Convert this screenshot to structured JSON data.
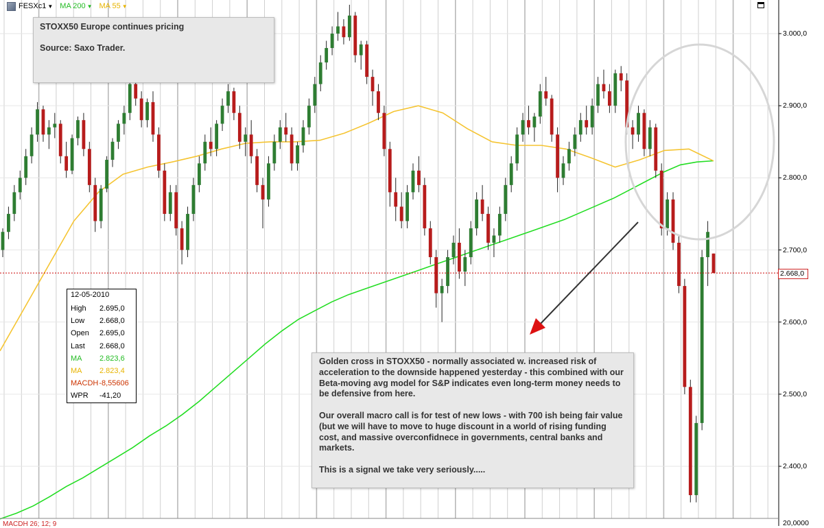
{
  "toolbar": {
    "symbol": "FESXc1",
    "ma_slow_label": "MA 200",
    "ma_fast_label": "MA 55"
  },
  "colors": {
    "up": "#2e7d32",
    "down": "#b71c1c",
    "ma_slow": "#22dd22",
    "ma_fast": "#f5c431",
    "last_line": "#cc0000",
    "grid": "#cfcfcf",
    "arrow": "#333333",
    "arrow_head": "#dd1111"
  },
  "notes": {
    "top_line1": "STOXX50 Europe continues pricing",
    "top_line2": "Source: Saxo Trader.",
    "bottom_p1": "Golden cross in STOXX50 - normally associated w. increased risk of acceleration to the downside happened yesterday - this combined with our Beta-moving avg model for S&P indicates even long-term money needs to be defensive from here.",
    "bottom_p2": "Our overall macro call is for test of new lows - with 700 ish being fair value (but we will have to move to huge discount in a world of rising funding cost, and massive overconfidnece in governments, central banks and markets.",
    "bottom_p3": "This is a signal we take very seriously....."
  },
  "info": {
    "date": "12-05-2010",
    "rows": [
      {
        "label": "High",
        "value": "2.695,0",
        "color": "#000000"
      },
      {
        "label": "Low",
        "value": "2.668,0",
        "color": "#000000"
      },
      {
        "label": "Open",
        "value": "2.695,0",
        "color": "#000000"
      },
      {
        "label": "Last",
        "value": "2.668,0",
        "color": "#000000"
      },
      {
        "label": "MA",
        "value": "2.823,6",
        "color": "#22bb22"
      },
      {
        "label": "MA",
        "value": "2.823,4",
        "color": "#e8b400"
      },
      {
        "label": "MACDH",
        "value": "-8,55606",
        "color": "#cc3300"
      },
      {
        "label": "WPR",
        "value": "-41,20",
        "color": "#000000"
      }
    ]
  },
  "last_price_label": "2.668,0",
  "macd_label": "MACDH 26; 12; 9",
  "macd_axis_label": "20,0000",
  "chart_data": {
    "type": "candlestick",
    "instrument": "FESXc1",
    "y_axis": {
      "ticks": [
        2400,
        2500,
        2600,
        2700,
        2800,
        2900,
        3000
      ],
      "tick_labels": [
        "2.400,0",
        "2.500,0",
        "2.600,0",
        "2.700,0",
        "2.800,0",
        "2.900,0",
        "3.000,0"
      ],
      "range": [
        2320,
        3045
      ]
    },
    "last_price": 2668,
    "series": [
      {
        "name": "MA 200",
        "type": "line",
        "values": [
          2327,
          2335,
          2345,
          2358,
          2372,
          2384,
          2398,
          2412,
          2426,
          2442,
          2456,
          2472,
          2490,
          2510,
          2530,
          2550,
          2570,
          2588,
          2604,
          2616,
          2628,
          2638,
          2646,
          2654,
          2662,
          2670,
          2678,
          2686,
          2694,
          2702,
          2710,
          2718,
          2726,
          2734,
          2742,
          2752,
          2762,
          2772,
          2784,
          2796,
          2808,
          2818,
          2822,
          2823.6
        ]
      },
      {
        "name": "MA 55",
        "type": "line",
        "values": [
          2560,
          2620,
          2680,
          2740,
          2780,
          2805,
          2815,
          2822,
          2830,
          2840,
          2848,
          2850,
          2850,
          2852,
          2862,
          2876,
          2892,
          2900,
          2890,
          2868,
          2850,
          2845,
          2845,
          2840,
          2828,
          2815,
          2825,
          2838,
          2840,
          2823.4
        ]
      }
    ],
    "ohlc": [
      [
        2700,
        2730,
        2690,
        2725
      ],
      [
        2725,
        2760,
        2715,
        2750
      ],
      [
        2750,
        2790,
        2740,
        2780
      ],
      [
        2780,
        2810,
        2770,
        2800
      ],
      [
        2800,
        2840,
        2790,
        2830
      ],
      [
        2830,
        2870,
        2820,
        2860
      ],
      [
        2860,
        2905,
        2850,
        2895
      ],
      [
        2895,
        2900,
        2850,
        2860
      ],
      [
        2860,
        2880,
        2840,
        2870
      ],
      [
        2870,
        2890,
        2855,
        2875
      ],
      [
        2875,
        2880,
        2820,
        2830
      ],
      [
        2830,
        2850,
        2800,
        2810
      ],
      [
        2810,
        2860,
        2805,
        2855
      ],
      [
        2855,
        2885,
        2845,
        2880
      ],
      [
        2880,
        2890,
        2830,
        2840
      ],
      [
        2840,
        2850,
        2780,
        2790
      ],
      [
        2790,
        2800,
        2725,
        2740
      ],
      [
        2740,
        2790,
        2730,
        2785
      ],
      [
        2785,
        2830,
        2780,
        2825
      ],
      [
        2825,
        2855,
        2815,
        2850
      ],
      [
        2850,
        2880,
        2840,
        2875
      ],
      [
        2875,
        2900,
        2860,
        2890
      ],
      [
        2890,
        2940,
        2880,
        2930
      ],
      [
        2930,
        2950,
        2900,
        2910
      ],
      [
        2910,
        2920,
        2870,
        2880
      ],
      [
        2880,
        2910,
        2870,
        2905
      ],
      [
        2905,
        2920,
        2850,
        2860
      ],
      [
        2860,
        2870,
        2800,
        2810
      ],
      [
        2810,
        2820,
        2740,
        2750
      ],
      [
        2750,
        2790,
        2740,
        2780
      ],
      [
        2780,
        2790,
        2720,
        2730
      ],
      [
        2730,
        2740,
        2680,
        2700
      ],
      [
        2700,
        2760,
        2690,
        2750
      ],
      [
        2750,
        2800,
        2740,
        2790
      ],
      [
        2790,
        2830,
        2780,
        2820
      ],
      [
        2820,
        2860,
        2810,
        2850
      ],
      [
        2850,
        2870,
        2830,
        2840
      ],
      [
        2840,
        2880,
        2830,
        2875
      ],
      [
        2875,
        2910,
        2865,
        2900
      ],
      [
        2900,
        2930,
        2890,
        2920
      ],
      [
        2920,
        2925,
        2880,
        2890
      ],
      [
        2890,
        2900,
        2840,
        2850
      ],
      [
        2850,
        2870,
        2830,
        2860
      ],
      [
        2860,
        2880,
        2820,
        2830
      ],
      [
        2830,
        2840,
        2780,
        2790
      ],
      [
        2790,
        2800,
        2730,
        2770
      ],
      [
        2770,
        2830,
        2760,
        2820
      ],
      [
        2820,
        2860,
        2810,
        2850
      ],
      [
        2850,
        2880,
        2840,
        2870
      ],
      [
        2870,
        2890,
        2850,
        2860
      ],
      [
        2860,
        2870,
        2810,
        2820
      ],
      [
        2820,
        2850,
        2810,
        2845
      ],
      [
        2845,
        2880,
        2835,
        2870
      ],
      [
        2870,
        2910,
        2860,
        2900
      ],
      [
        2900,
        2940,
        2890,
        2930
      ],
      [
        2930,
        2970,
        2920,
        2960
      ],
      [
        2960,
        2990,
        2950,
        2980
      ],
      [
        2980,
        3010,
        2970,
        3000
      ],
      [
        3000,
        3030,
        2990,
        3010
      ],
      [
        3010,
        3020,
        2985,
        2995
      ],
      [
        2995,
        3040,
        2990,
        3025
      ],
      [
        3025,
        3030,
        2960,
        2970
      ],
      [
        2970,
        2990,
        2950,
        2985
      ],
      [
        2985,
        2990,
        2930,
        2940
      ],
      [
        2940,
        2950,
        2900,
        2920
      ],
      [
        2920,
        2930,
        2880,
        2890
      ],
      [
        2890,
        2900,
        2830,
        2840
      ],
      [
        2840,
        2850,
        2760,
        2780
      ],
      [
        2780,
        2800,
        2740,
        2760
      ],
      [
        2760,
        2780,
        2730,
        2740
      ],
      [
        2740,
        2790,
        2730,
        2780
      ],
      [
        2780,
        2820,
        2770,
        2810
      ],
      [
        2810,
        2830,
        2780,
        2790
      ],
      [
        2790,
        2800,
        2720,
        2730
      ],
      [
        2730,
        2740,
        2680,
        2690
      ],
      [
        2690,
        2700,
        2620,
        2640
      ],
      [
        2640,
        2660,
        2600,
        2650
      ],
      [
        2650,
        2700,
        2640,
        2690
      ],
      [
        2690,
        2720,
        2680,
        2710
      ],
      [
        2710,
        2730,
        2660,
        2670
      ],
      [
        2670,
        2700,
        2650,
        2690
      ],
      [
        2690,
        2740,
        2680,
        2730
      ],
      [
        2730,
        2780,
        2720,
        2770
      ],
      [
        2770,
        2790,
        2740,
        2750
      ],
      [
        2750,
        2760,
        2700,
        2710
      ],
      [
        2710,
        2730,
        2690,
        2720
      ],
      [
        2720,
        2760,
        2710,
        2750
      ],
      [
        2750,
        2800,
        2740,
        2790
      ],
      [
        2790,
        2830,
        2780,
        2820
      ],
      [
        2820,
        2870,
        2810,
        2860
      ],
      [
        2860,
        2890,
        2850,
        2880
      ],
      [
        2880,
        2900,
        2860,
        2870
      ],
      [
        2870,
        2890,
        2850,
        2885
      ],
      [
        2885,
        2930,
        2875,
        2920
      ],
      [
        2920,
        2940,
        2900,
        2910
      ],
      [
        2910,
        2915,
        2850,
        2860
      ],
      [
        2860,
        2870,
        2780,
        2800
      ],
      [
        2800,
        2830,
        2790,
        2820
      ],
      [
        2820,
        2850,
        2810,
        2840
      ],
      [
        2840,
        2870,
        2830,
        2860
      ],
      [
        2860,
        2890,
        2850,
        2880
      ],
      [
        2880,
        2900,
        2860,
        2870
      ],
      [
        2870,
        2910,
        2860,
        2900
      ],
      [
        2900,
        2940,
        2890,
        2930
      ],
      [
        2930,
        2950,
        2910,
        2920
      ],
      [
        2920,
        2930,
        2890,
        2900
      ],
      [
        2900,
        2950,
        2890,
        2945
      ],
      [
        2945,
        2955,
        2920,
        2935
      ],
      [
        2935,
        2945,
        2860,
        2870
      ],
      [
        2870,
        2880,
        2840,
        2860
      ],
      [
        2860,
        2900,
        2850,
        2890
      ],
      [
        2890,
        2895,
        2830,
        2840
      ],
      [
        2840,
        2880,
        2830,
        2870
      ],
      [
        2870,
        2875,
        2800,
        2810
      ],
      [
        2810,
        2820,
        2720,
        2730
      ],
      [
        2730,
        2780,
        2720,
        2770
      ],
      [
        2770,
        2780,
        2700,
        2710
      ],
      [
        2710,
        2720,
        2640,
        2650
      ],
      [
        2650,
        2660,
        2500,
        2510
      ],
      [
        2510,
        2520,
        2350,
        2360
      ],
      [
        2360,
        2470,
        2350,
        2460
      ],
      [
        2460,
        2700,
        2450,
        2690
      ],
      [
        2690,
        2740,
        2650,
        2725
      ],
      [
        2695,
        2695,
        2668,
        2668
      ]
    ]
  }
}
